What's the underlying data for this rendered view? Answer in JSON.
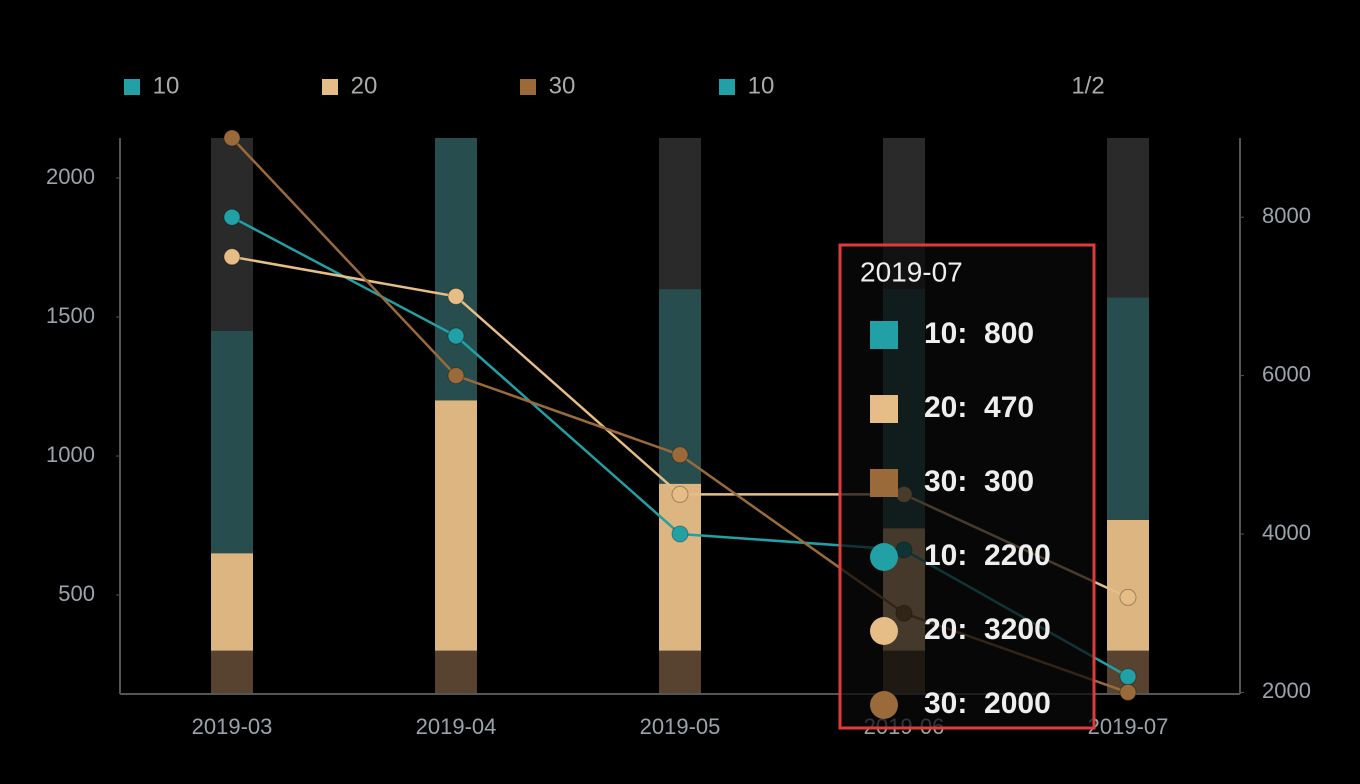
{
  "chart_data": {
    "type": "bar-line",
    "categories": [
      "2019-03",
      "2019-04",
      "2019-05",
      "2019-06",
      "2019-07"
    ],
    "series": [
      {
        "name": "10",
        "type": "bar",
        "color": "#21a0a6",
        "opacity": 0.3,
        "values": [
          800,
          950,
          700,
          860,
          800
        ]
      },
      {
        "name": "20",
        "type": "bar",
        "color": "#e6bd86",
        "opacity": 0.95,
        "values": [
          350,
          900,
          600,
          440,
          470
        ]
      },
      {
        "name": "30",
        "type": "bar",
        "color": "#9a6a3a",
        "opacity": 0.4,
        "values": [
          300,
          300,
          300,
          300,
          300
        ]
      },
      {
        "name": "10",
        "type": "line",
        "axis": "y2",
        "color": "#21a0a6",
        "values": [
          8000,
          6500,
          4000,
          3800,
          2200
        ]
      },
      {
        "name": "20",
        "type": "line",
        "axis": "y2",
        "color": "#e6bd86",
        "values": [
          7500,
          7000,
          4500,
          4500,
          3200
        ]
      },
      {
        "name": "30",
        "type": "line",
        "axis": "y2",
        "color": "#9a6a3a",
        "values": [
          9000,
          6000,
          5000,
          3000,
          2000
        ]
      }
    ],
    "ylim": [
      144,
      2144
    ],
    "yticks": [
      500,
      1000,
      1500,
      2000
    ],
    "y2lim": [
      1980,
      9000
    ],
    "y2ticks": [
      2000,
      4000,
      6000,
      8000
    ],
    "legend_page": "1/2",
    "tooltip": {
      "title": "2019-07",
      "entries": [
        "10:  800",
        "20:  470",
        "30:  300",
        "10:  2200",
        "20:  3200",
        "30:  2000"
      ]
    }
  }
}
